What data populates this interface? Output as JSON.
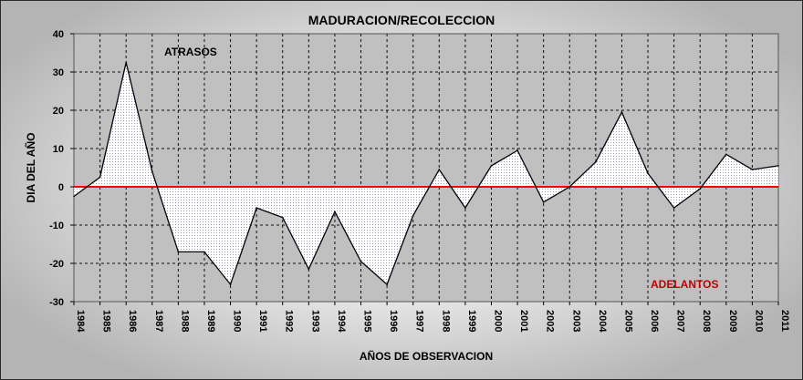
{
  "chart_data": {
    "type": "area",
    "title": "MADURACION/RECOLECCION",
    "xlabel": "AÑOS DE OBSERVACION",
    "ylabel": "DIA DEL AÑO",
    "ylim": [
      -30,
      40
    ],
    "yticks": [
      40,
      30,
      20,
      10,
      0,
      -10,
      -20,
      -30
    ],
    "grid": true,
    "baseline": 0,
    "annotations": {
      "above": "ATRASOS",
      "below": "ADELANTOS"
    },
    "colors": {
      "line": "#000000",
      "baseline": "#ff0000",
      "below_label": "#c00000",
      "fill": "#bfbfd8"
    },
    "categories": [
      "1984",
      "1985",
      "1986",
      "1987",
      "1988",
      "1989",
      "1990",
      "1991",
      "1992",
      "1993",
      "1994",
      "1995",
      "1996",
      "1997",
      "1998",
      "1999",
      "2000",
      "2001",
      "2002",
      "2003",
      "2004",
      "2005",
      "2006",
      "2007",
      "2008",
      "2009",
      "2010",
      "2011"
    ],
    "values": [
      -2.5,
      2.5,
      32.5,
      4,
      -17,
      -17,
      -25.5,
      -5.5,
      -8,
      -21.5,
      -6.5,
      -19.5,
      -25.5,
      -7.5,
      4.5,
      -5.5,
      5.5,
      9.5,
      -4,
      0,
      6.5,
      19.5,
      3.5,
      -5.5,
      -0.5,
      8.5,
      4.5,
      5.5
    ]
  }
}
